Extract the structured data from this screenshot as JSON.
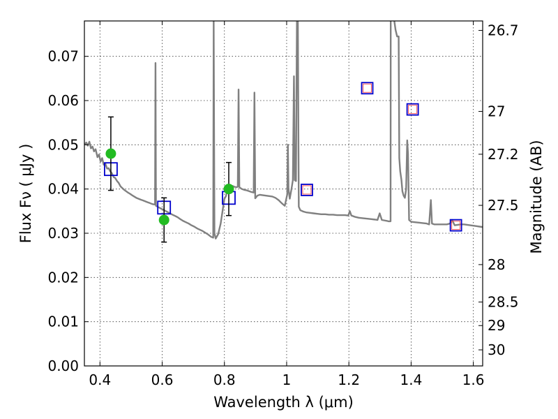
{
  "chart_data": {
    "type": "scatter",
    "xlabel": "Wavelength  λ (μm)",
    "ylabel": "Flux  Fν  ( μJy )",
    "y2label": "Magnitude (AB)",
    "xlim": [
      0.35,
      1.63
    ],
    "ylim": [
      0.0,
      0.078
    ],
    "grid": true,
    "xticks": [
      0.4,
      0.6,
      0.8,
      1.0,
      1.2,
      1.4,
      1.6
    ],
    "xtick_labels": [
      "0.4",
      "0.6",
      "0.8",
      "1",
      "1.2",
      "1.4",
      "1.6"
    ],
    "yticks": [
      0.0,
      0.01,
      0.02,
      0.03,
      0.04,
      0.05,
      0.06,
      0.07
    ],
    "ytick_labels": [
      "0.00",
      "0.01",
      "0.02",
      "0.03",
      "0.04",
      "0.05",
      "0.06",
      "0.07"
    ],
    "y2ticks": [
      {
        "label": "26.7",
        "mag": 26.7
      },
      {
        "label": "27",
        "mag": 27.0
      },
      {
        "label": "27.2",
        "mag": 27.2
      },
      {
        "label": "27.5",
        "mag": 27.5
      },
      {
        "label": "28",
        "mag": 28.0
      },
      {
        "label": "28.5",
        "mag": 28.5
      },
      {
        "label": "29",
        "mag": 29.0
      },
      {
        "label": "30",
        "mag": 30.0
      }
    ],
    "colors": {
      "spectrum": "#808080",
      "observed": "#22bb22",
      "model_box": "#0000cc",
      "model_inner": "#ff5555",
      "errorbar": "#000000",
      "grid": "#000000"
    },
    "spectrum": [
      [
        0.35,
        0.05
      ],
      [
        0.356,
        0.0505
      ],
      [
        0.361,
        0.0498
      ],
      [
        0.366,
        0.0507
      ],
      [
        0.371,
        0.0492
      ],
      [
        0.376,
        0.0496
      ],
      [
        0.381,
        0.0485
      ],
      [
        0.386,
        0.049
      ],
      [
        0.392,
        0.0472
      ],
      [
        0.397,
        0.0478
      ],
      [
        0.402,
        0.0462
      ],
      [
        0.407,
        0.047
      ],
      [
        0.412,
        0.0455
      ],
      [
        0.417,
        0.0458
      ],
      [
        0.423,
        0.0446
      ],
      [
        0.428,
        0.0447
      ],
      [
        0.433,
        0.044
      ],
      [
        0.438,
        0.0436
      ],
      [
        0.444,
        0.0427
      ],
      [
        0.449,
        0.0425
      ],
      [
        0.455,
        0.0418
      ],
      [
        0.46,
        0.0414
      ],
      [
        0.466,
        0.0406
      ],
      [
        0.472,
        0.0402
      ],
      [
        0.478,
        0.0398
      ],
      [
        0.484,
        0.0395
      ],
      [
        0.49,
        0.0392
      ],
      [
        0.497,
        0.0389
      ],
      [
        0.503,
        0.0386
      ],
      [
        0.51,
        0.0383
      ],
      [
        0.517,
        0.038
      ],
      [
        0.524,
        0.0378
      ],
      [
        0.531,
        0.0376
      ],
      [
        0.539,
        0.0374
      ],
      [
        0.546,
        0.0372
      ],
      [
        0.553,
        0.037
      ],
      [
        0.561,
        0.0368
      ],
      [
        0.568,
        0.0366
      ],
      [
        0.575,
        0.0365
      ],
      [
        0.577,
        0.0365
      ],
      [
        0.5785,
        0.0685
      ],
      [
        0.58,
        0.0362
      ],
      [
        0.585,
        0.036
      ],
      [
        0.593,
        0.0357
      ],
      [
        0.601,
        0.0354
      ],
      [
        0.609,
        0.0351
      ],
      [
        0.617,
        0.0348
      ],
      [
        0.625,
        0.0345
      ],
      [
        0.633,
        0.0342
      ],
      [
        0.642,
        0.0339
      ],
      [
        0.65,
        0.0336
      ],
      [
        0.658,
        0.0332
      ],
      [
        0.667,
        0.0328
      ],
      [
        0.676,
        0.0325
      ],
      [
        0.685,
        0.0322
      ],
      [
        0.694,
        0.0318
      ],
      [
        0.703,
        0.0315
      ],
      [
        0.712,
        0.0311
      ],
      [
        0.721,
        0.0308
      ],
      [
        0.73,
        0.0305
      ],
      [
        0.739,
        0.0301
      ],
      [
        0.748,
        0.0297
      ],
      [
        0.757,
        0.0292
      ],
      [
        0.764,
        0.029
      ],
      [
        0.7655,
        0.078
      ],
      [
        0.768,
        0.03
      ],
      [
        0.772,
        0.0288
      ],
      [
        0.78,
        0.0298
      ],
      [
        0.788,
        0.0322
      ],
      [
        0.795,
        0.0355
      ],
      [
        0.8,
        0.0378
      ],
      [
        0.805,
        0.0384
      ],
      [
        0.81,
        0.04
      ],
      [
        0.815,
        0.0405
      ],
      [
        0.82,
        0.0406
      ],
      [
        0.826,
        0.0407
      ],
      [
        0.832,
        0.0405
      ],
      [
        0.838,
        0.0404
      ],
      [
        0.843,
        0.0405
      ],
      [
        0.8455,
        0.0625
      ],
      [
        0.848,
        0.0404
      ],
      [
        0.856,
        0.04
      ],
      [
        0.864,
        0.0398
      ],
      [
        0.872,
        0.0397
      ],
      [
        0.88,
        0.0395
      ],
      [
        0.888,
        0.0393
      ],
      [
        0.894,
        0.0392
      ],
      [
        0.8965,
        0.0618
      ],
      [
        0.899,
        0.0379
      ],
      [
        0.906,
        0.0385
      ],
      [
        0.914,
        0.0387
      ],
      [
        0.924,
        0.0386
      ],
      [
        0.934,
        0.0385
      ],
      [
        0.944,
        0.0384
      ],
      [
        0.954,
        0.0383
      ],
      [
        0.964,
        0.038
      ],
      [
        0.974,
        0.0375
      ],
      [
        0.984,
        0.0368
      ],
      [
        0.994,
        0.0362
      ],
      [
        1.002,
        0.0388
      ],
      [
        1.004,
        0.05
      ],
      [
        1.006,
        0.04
      ],
      [
        1.01,
        0.0378
      ],
      [
        1.016,
        0.0402
      ],
      [
        1.02,
        0.042
      ],
      [
        1.0235,
        0.0655
      ],
      [
        1.026,
        0.042
      ],
      [
        1.03,
        0.0418
      ],
      [
        1.033,
        0.078
      ],
      [
        1.036,
        0.079
      ],
      [
        1.039,
        0.036
      ],
      [
        1.044,
        0.0352
      ],
      [
        1.054,
        0.0349
      ],
      [
        1.064,
        0.0347
      ],
      [
        1.075,
        0.0346
      ],
      [
        1.087,
        0.0345
      ],
      [
        1.099,
        0.0344
      ],
      [
        1.111,
        0.0343
      ],
      [
        1.124,
        0.0343
      ],
      [
        1.136,
        0.0342
      ],
      [
        1.149,
        0.0342
      ],
      [
        1.162,
        0.0341
      ],
      [
        1.175,
        0.0341
      ],
      [
        1.188,
        0.0341
      ],
      [
        1.198,
        0.034
      ],
      [
        1.203,
        0.035
      ],
      [
        1.208,
        0.034
      ],
      [
        1.22,
        0.0337
      ],
      [
        1.232,
        0.0335
      ],
      [
        1.244,
        0.0334
      ],
      [
        1.257,
        0.0333
      ],
      [
        1.27,
        0.0332
      ],
      [
        1.283,
        0.0331
      ],
      [
        1.292,
        0.033
      ],
      [
        1.299,
        0.0345
      ],
      [
        1.306,
        0.033
      ],
      [
        1.314,
        0.0329
      ],
      [
        1.322,
        0.0328
      ],
      [
        1.327,
        0.0327
      ],
      [
        1.334,
        0.0327
      ],
      [
        1.3345,
        0.0785
      ],
      [
        1.345,
        0.0785
      ],
      [
        1.35,
        0.076
      ],
      [
        1.355,
        0.0745
      ],
      [
        1.36,
        0.0745
      ],
      [
        1.362,
        0.047
      ],
      [
        1.365,
        0.044
      ],
      [
        1.369,
        0.042
      ],
      [
        1.372,
        0.0395
      ],
      [
        1.376,
        0.0385
      ],
      [
        1.38,
        0.038
      ],
      [
        1.384,
        0.04
      ],
      [
        1.3875,
        0.051
      ],
      [
        1.39,
        0.048
      ],
      [
        1.3935,
        0.033
      ],
      [
        1.4,
        0.0326
      ],
      [
        1.412,
        0.0325
      ],
      [
        1.425,
        0.0324
      ],
      [
        1.437,
        0.0323
      ],
      [
        1.45,
        0.0322
      ],
      [
        1.458,
        0.032
      ],
      [
        1.4635,
        0.0375
      ],
      [
        1.467,
        0.0322
      ],
      [
        1.475,
        0.032
      ],
      [
        1.485,
        0.032
      ],
      [
        1.495,
        0.032
      ],
      [
        1.505,
        0.032
      ],
      [
        1.515,
        0.032
      ],
      [
        1.525,
        0.0322
      ],
      [
        1.532,
        0.033
      ],
      [
        1.54,
        0.0318
      ],
      [
        1.55,
        0.0319
      ],
      [
        1.56,
        0.032
      ],
      [
        1.57,
        0.032
      ],
      [
        1.58,
        0.0319
      ],
      [
        1.59,
        0.0318
      ],
      [
        1.6,
        0.0317
      ],
      [
        1.61,
        0.0316
      ],
      [
        1.62,
        0.0315
      ],
      [
        1.63,
        0.0314
      ]
    ],
    "observed": [
      {
        "x": 0.435,
        "y": 0.048,
        "yerr": 0.0083
      },
      {
        "x": 0.606,
        "y": 0.033,
        "yerr": 0.005
      },
      {
        "x": 0.814,
        "y": 0.04,
        "yerr": 0.006
      }
    ],
    "model_points": [
      {
        "x": 0.435,
        "y": 0.0445,
        "inner": false
      },
      {
        "x": 0.606,
        "y": 0.0358,
        "inner": false
      },
      {
        "x": 0.814,
        "y": 0.038,
        "inner": false
      },
      {
        "x": 1.065,
        "y": 0.0398,
        "inner": true
      },
      {
        "x": 1.259,
        "y": 0.0628,
        "inner": true
      },
      {
        "x": 1.405,
        "y": 0.058,
        "inner": true
      },
      {
        "x": 1.544,
        "y": 0.0318,
        "inner": true
      }
    ]
  }
}
